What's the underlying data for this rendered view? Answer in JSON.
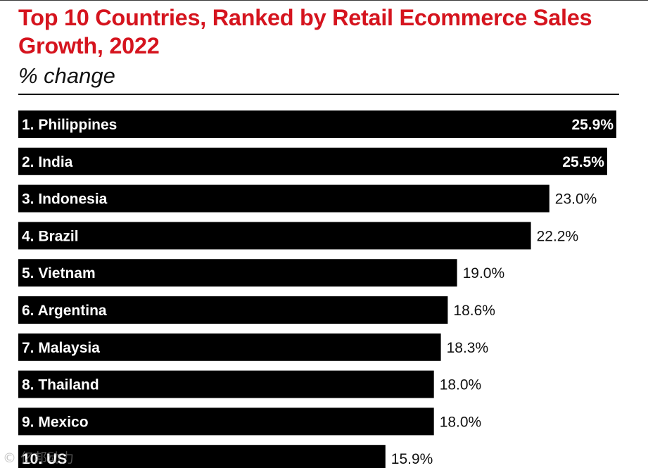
{
  "header": {
    "title": "Top 10 Countries, Ranked by Retail Ecommerce Sales Growth, 2022",
    "subtitle": "% change"
  },
  "watermark": "© 亿邦动力",
  "colors": {
    "title": "#d5141e",
    "bar": "#000000",
    "bar_label": "#ffffff",
    "value_label": "#111111"
  },
  "chart_data": {
    "type": "bar",
    "orientation": "horizontal",
    "title": "Top 10 Countries, Ranked by Retail Ecommerce Sales Growth, 2022",
    "subtitle": "% change",
    "categories": [
      "1. Philippines",
      "2. India",
      "3. Indonesia",
      "4. Brazil",
      "5. Vietnam",
      "6. Argentina",
      "7. Malaysia",
      "8. Thailand",
      "9. Mexico",
      "10. US"
    ],
    "values": [
      25.9,
      25.5,
      23.0,
      22.2,
      19.0,
      18.6,
      18.3,
      18.0,
      18.0,
      15.9
    ],
    "value_labels": [
      "25.9%",
      "25.5%",
      "23.0%",
      "22.2%",
      "19.0%",
      "18.6%",
      "18.3%",
      "18.0%",
      "18.0%",
      "15.9%"
    ],
    "xlabel": "",
    "ylabel": "",
    "xlim": [
      0,
      25.9
    ],
    "grid": false,
    "legend": "none"
  }
}
